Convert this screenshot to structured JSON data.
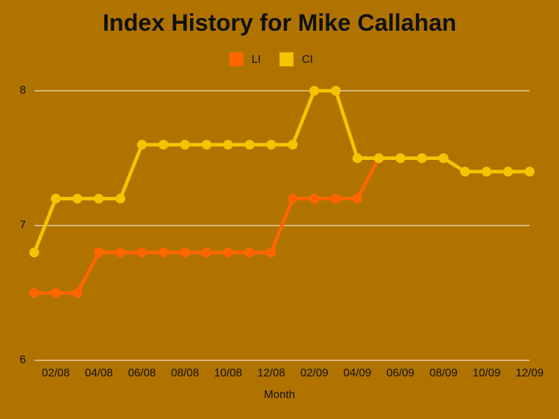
{
  "chart_data": {
    "type": "line",
    "title": "Index History for Mike Callahan",
    "x_label": "Month",
    "categories": [
      null,
      "02/08",
      null,
      "04/08",
      null,
      "06/08",
      null,
      "08/08",
      null,
      "10/08",
      null,
      "12/08",
      null,
      "02/09",
      null,
      "04/09",
      null,
      "06/09",
      null,
      "08/09",
      null,
      "10/09",
      null,
      "12/09"
    ],
    "series": [
      {
        "name": "LI",
        "color": "#ff6600",
        "values": [
          6.5,
          6.5,
          6.5,
          6.8,
          6.8,
          6.8,
          6.8,
          6.8,
          6.8,
          6.8,
          6.8,
          6.8,
          7.2,
          7.2,
          7.2,
          7.2,
          7.5,
          null,
          null,
          null,
          null,
          null,
          null,
          null
        ]
      },
      {
        "name": "CI",
        "color": "#f5c400",
        "values": [
          6.8,
          7.2,
          7.2,
          7.2,
          7.2,
          7.6,
          7.6,
          7.6,
          7.6,
          7.6,
          7.6,
          7.6,
          7.6,
          8.0,
          8.0,
          7.5,
          7.5,
          7.5,
          7.5,
          7.5,
          7.4,
          7.4,
          7.4,
          7.4
        ]
      }
    ],
    "ylim": [
      6,
      8
    ],
    "yticks": [
      6,
      7,
      8
    ],
    "grid": true
  }
}
